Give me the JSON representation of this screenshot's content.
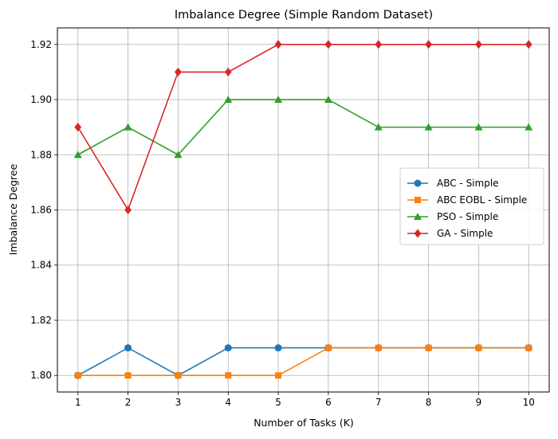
{
  "chart_data": {
    "type": "line",
    "title": "Imbalance Degree (Simple Random Dataset)",
    "xlabel": "Number of Tasks (K)",
    "ylabel": "Imbalance Degree",
    "x": [
      1,
      2,
      3,
      4,
      5,
      6,
      7,
      8,
      9,
      10
    ],
    "xlim": [
      0.59,
      10.41
    ],
    "ylim": [
      1.794,
      1.926
    ],
    "xticks": [
      "1",
      "2",
      "3",
      "4",
      "5",
      "6",
      "7",
      "8",
      "9",
      "10"
    ],
    "yticks": [
      "1.80",
      "1.82",
      "1.84",
      "1.86",
      "1.88",
      "1.90",
      "1.92"
    ],
    "grid": true,
    "legend_position": "center-right",
    "series": [
      {
        "name": "ABC - Simple",
        "color": "#1f77b4",
        "marker": "circle",
        "values": [
          1.8,
          1.81,
          1.8,
          1.81,
          1.81,
          1.81,
          1.81,
          1.81,
          1.81,
          1.81
        ]
      },
      {
        "name": "ABC EOBL - Simple",
        "color": "#ff7f0e",
        "marker": "square",
        "values": [
          1.8,
          1.8,
          1.8,
          1.8,
          1.8,
          1.81,
          1.81,
          1.81,
          1.81,
          1.81
        ]
      },
      {
        "name": "PSO - Simple",
        "color": "#2ca02c",
        "marker": "triangle",
        "values": [
          1.88,
          1.89,
          1.88,
          1.9,
          1.9,
          1.9,
          1.89,
          1.89,
          1.89,
          1.89
        ]
      },
      {
        "name": "GA - Simple",
        "color": "#d62728",
        "marker": "diamond",
        "values": [
          1.89,
          1.86,
          1.91,
          1.91,
          1.92,
          1.92,
          1.92,
          1.92,
          1.92,
          1.92
        ]
      }
    ]
  }
}
